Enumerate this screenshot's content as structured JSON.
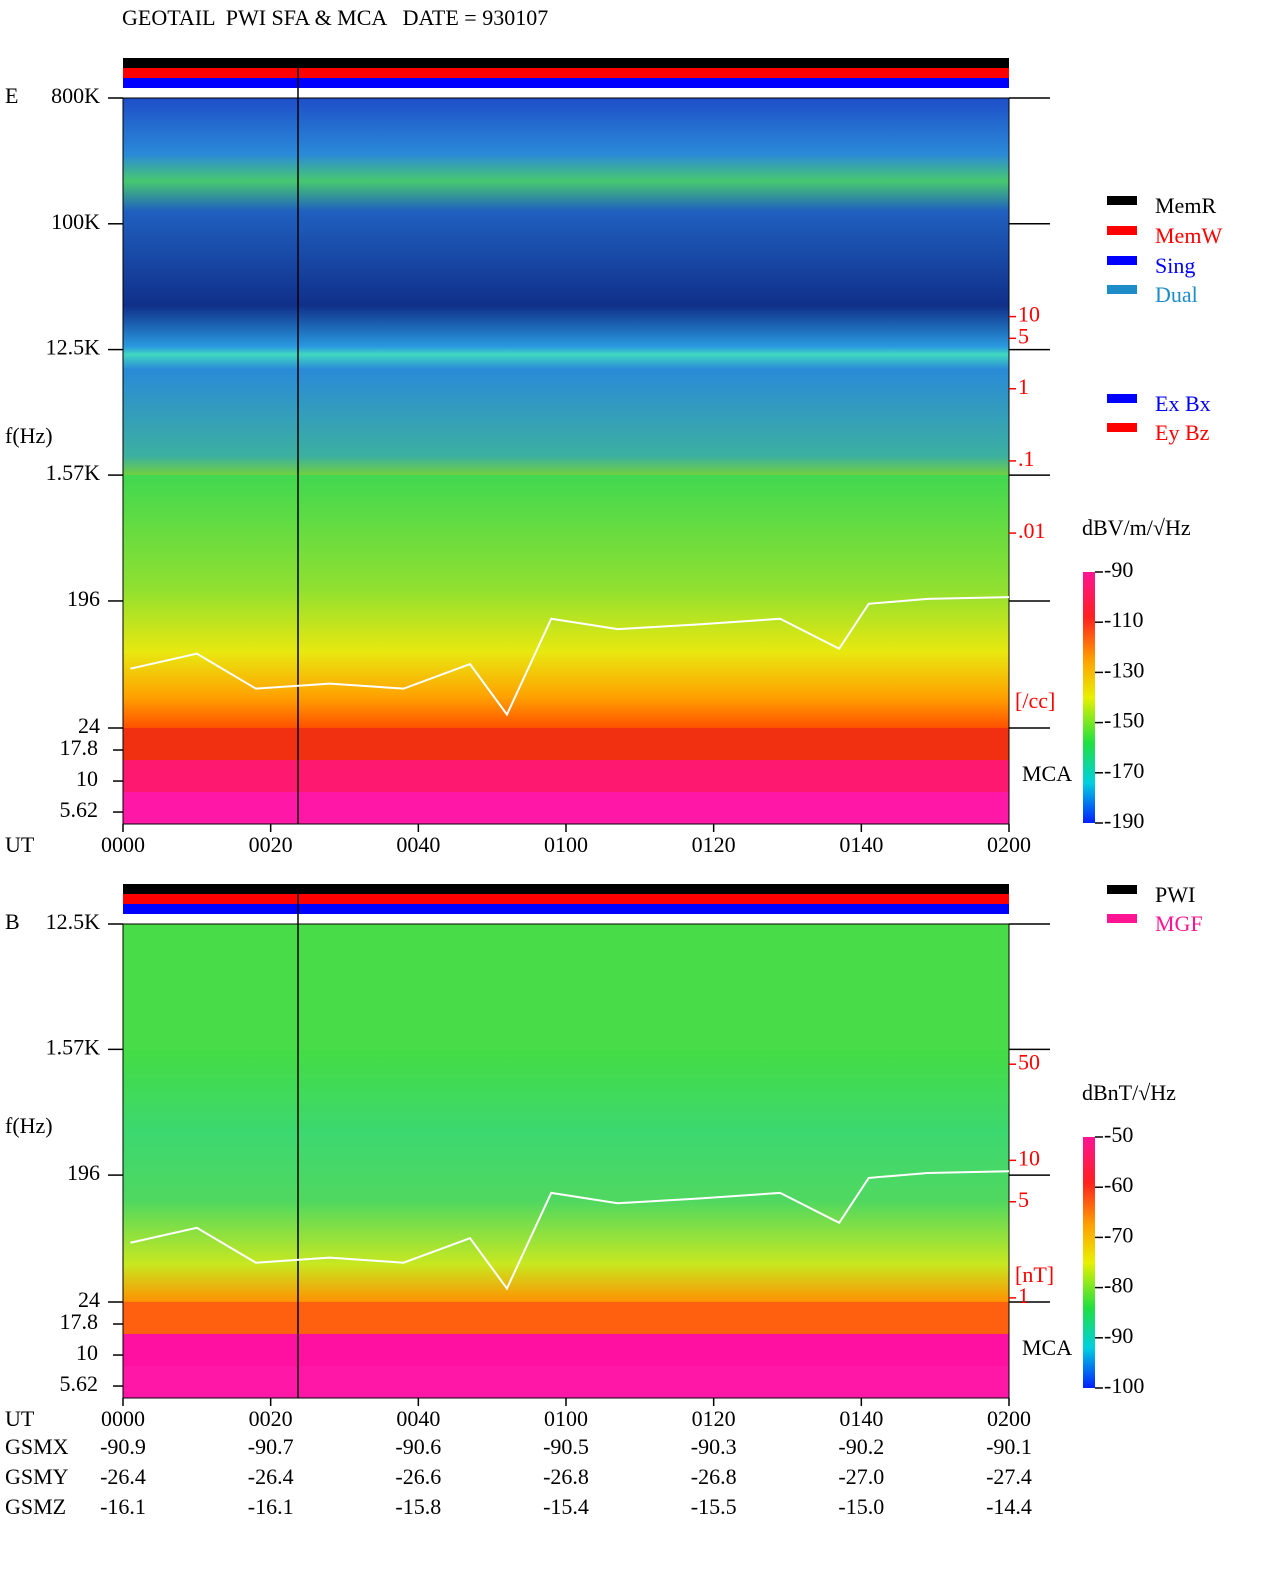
{
  "title": "GEOTAIL  PWI SFA & MCA   DATE = 930107",
  "chart_data": [
    {
      "type": "spectrogram",
      "panel_label": "E",
      "y_label": "f(Hz)",
      "x_label": "UT",
      "xlim": [
        0,
        120
      ],
      "xticks": [
        {
          "value": 0,
          "label": "0000"
        },
        {
          "value": 20,
          "label": "0020"
        },
        {
          "value": 40,
          "label": "0040"
        },
        {
          "value": 60,
          "label": "0100"
        },
        {
          "value": 80,
          "label": "0120"
        },
        {
          "value": 100,
          "label": "0140"
        },
        {
          "value": 120,
          "label": "0200"
        }
      ],
      "log_y": true,
      "ylim": [
        24,
        800000
      ],
      "yticks": [
        {
          "value": 800000,
          "label": "800K"
        },
        {
          "value": 100000,
          "label": "100K"
        },
        {
          "value": 12500,
          "label": "12.5K"
        },
        {
          "value": 1570,
          "label": "1.57K"
        },
        196,
        24
      ],
      "mca_label": "MCA",
      "mca_ylim": [
        4.5,
        26.8
      ],
      "mca_yticks": [
        17.8,
        10,
        5.62
      ],
      "y2_label": "[/cc]",
      "y2_color": "#ff0000",
      "y2lim": [
        9.3e-07,
        10700
      ],
      "y2ticks": [
        10,
        5,
        1,
        {
          "value": 0.1,
          "label": ".1"
        },
        {
          "value": 0.01,
          "label": ".01"
        }
      ],
      "colorbar_label": "dBV/m/√Hz",
      "zlim": [
        -190,
        -90
      ],
      "zticks": [
        -90,
        -110,
        -130,
        -150,
        -170,
        -190
      ],
      "line": {
        "color": "#ffffff",
        "x": [
          1,
          10,
          18,
          28,
          38,
          47,
          52,
          58,
          67,
          78,
          89,
          97,
          101,
          109,
          120
        ],
        "values": [
          64,
          82,
          46,
          50,
          46,
          69,
          30,
          146,
          123,
          133,
          146,
          89,
          187,
          203,
          209
        ]
      },
      "legend": [
        {
          "name": "MemR",
          "color": "#000000"
        },
        {
          "name": "MemW",
          "color": "#ff0000"
        },
        {
          "name": "Sing",
          "color": "#0000ff"
        },
        {
          "name": "Dual",
          "color": "#1e8cc8"
        }
      ],
      "legend2": [
        {
          "name": "Ex Bx",
          "color": "#0000ff"
        },
        {
          "name": "Ey Bz",
          "color": "#ff0000"
        }
      ]
    },
    {
      "type": "spectrogram",
      "panel_label": "B",
      "y_label": "f(Hz)",
      "x_label": "UT",
      "xlim": [
        0,
        120
      ],
      "xticks": [
        {
          "value": 0,
          "label": "0000"
        },
        {
          "value": 20,
          "label": "0020"
        },
        {
          "value": 40,
          "label": "0040"
        },
        {
          "value": 60,
          "label": "0100"
        },
        {
          "value": 80,
          "label": "0120"
        },
        {
          "value": 100,
          "label": "0140"
        },
        {
          "value": 120,
          "label": "0200"
        }
      ],
      "log_y": true,
      "ylim": [
        24,
        12500
      ],
      "yticks": [
        {
          "value": 12500,
          "label": "12.5K"
        },
        {
          "value": 1570,
          "label": "1.57K"
        },
        196,
        24
      ],
      "mca_label": "MCA",
      "mca_ylim": [
        4.5,
        26.8
      ],
      "mca_yticks": [
        17.8,
        10,
        5.62
      ],
      "y2_label": "[nT]",
      "y2_color": "#ff0000",
      "y2lim": [
        0.187,
        523
      ],
      "y2ticks": [
        50,
        10,
        5,
        1
      ],
      "colorbar_label": "dBnT/√Hz",
      "zlim": [
        -100,
        -50
      ],
      "zticks": [
        -50,
        -60,
        -70,
        -80,
        -90,
        -100
      ],
      "line": {
        "color": "#ffffff",
        "x": [
          1,
          10,
          18,
          28,
          38,
          47,
          52,
          58,
          67,
          78,
          89,
          97,
          101,
          109,
          120
        ],
        "values": [
          64,
          82,
          46,
          50,
          46,
          69,
          30,
          146,
          123,
          133,
          146,
          89,
          187,
          203,
          209
        ]
      },
      "legend": [
        {
          "name": "PWI",
          "color": "#000000"
        },
        {
          "name": "MGF",
          "color": "#ff1493"
        }
      ]
    }
  ],
  "orbit": {
    "labels": [
      "GSMX",
      "GSMY",
      "GSMZ"
    ],
    "rows": [
      [
        "-90.9",
        "-90.7",
        "-90.6",
        "-90.5",
        "-90.3",
        "-90.2",
        "-90.1"
      ],
      [
        "-26.4",
        "-26.4",
        "-26.6",
        "-26.8",
        "-26.8",
        "-27.0",
        "-27.4"
      ],
      [
        "-16.1",
        "-16.1",
        "-15.8",
        "-15.4",
        "-15.5",
        "-15.0",
        "-14.4"
      ]
    ]
  }
}
